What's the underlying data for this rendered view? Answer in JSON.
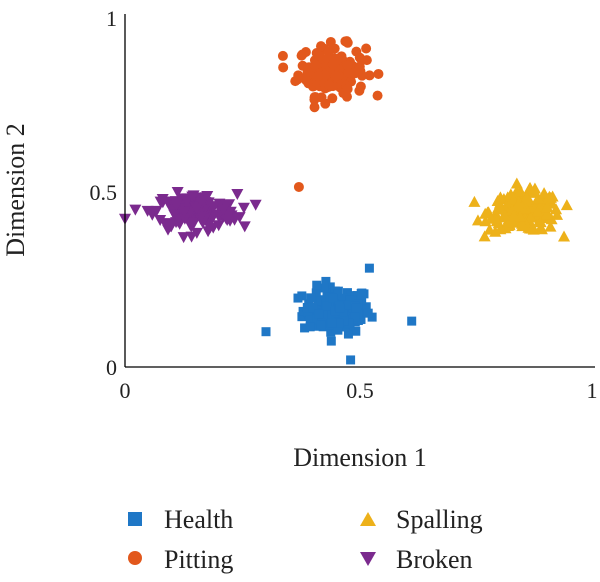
{
  "chart_data": {
    "type": "scatter",
    "title": "",
    "xlabel": "Dimension 1",
    "ylabel": "Dimension 2",
    "xlim": [
      0,
      1
    ],
    "ylim": [
      0,
      1
    ],
    "xticks": [
      "0",
      "0.5",
      "1"
    ],
    "yticks": [
      "0",
      "0.5",
      "1"
    ],
    "grid": false,
    "legend_position": "bottom",
    "series": [
      {
        "name": "Health",
        "marker": "square",
        "color": "#1F77C6",
        "cluster": {
          "center": [
            0.45,
            0.16
          ],
          "spread": [
            0.065,
            0.06
          ],
          "count": 150
        },
        "points": [
          [
            0.61,
            0.13
          ],
          [
            0.52,
            0.28
          ],
          [
            0.3,
            0.1
          ],
          [
            0.48,
            0.02
          ]
        ]
      },
      {
        "name": "Pitting",
        "marker": "circle",
        "color": "#E2581C",
        "cluster": {
          "center": [
            0.44,
            0.84
          ],
          "spread": [
            0.065,
            0.065
          ],
          "count": 150
        },
        "points": [
          [
            0.37,
            0.51
          ]
        ]
      },
      {
        "name": "Spalling",
        "marker": "triangle-up",
        "color": "#EDB11A",
        "cluster": {
          "center": [
            0.85,
            0.44
          ],
          "spread": [
            0.068,
            0.05
          ],
          "count": 200
        },
        "points": []
      },
      {
        "name": "Broken",
        "marker": "triangle-down",
        "color": "#7B2A8E",
        "cluster": {
          "center": [
            0.15,
            0.44
          ],
          "spread": [
            0.08,
            0.045
          ],
          "count": 190
        },
        "points": [
          [
            0.0,
            0.42
          ]
        ]
      }
    ]
  }
}
